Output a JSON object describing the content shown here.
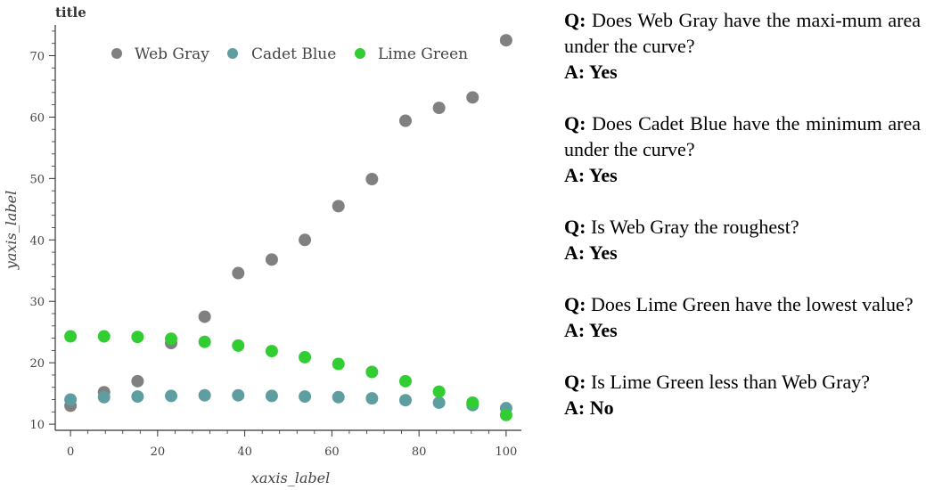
{
  "chart_data": {
    "type": "scatter",
    "title": "title",
    "xlabel": "xaxis_label",
    "ylabel": "yaxis_label",
    "xlim": [
      -3.5,
      103.5
    ],
    "ylim": [
      9,
      75
    ],
    "xticks": [
      0,
      20,
      40,
      60,
      80,
      100
    ],
    "yticks": [
      10,
      20,
      30,
      40,
      50,
      60,
      70
    ],
    "legend": "top-right",
    "grid": false,
    "x": [
      0,
      7.7,
      15.4,
      23.1,
      30.8,
      38.5,
      46.2,
      53.8,
      61.5,
      69.2,
      76.9,
      84.6,
      92.3,
      100
    ],
    "series": [
      {
        "name": "Web Gray",
        "color": "#808080",
        "values": [
          13.0,
          15.2,
          17.0,
          23.2,
          27.5,
          34.6,
          36.8,
          40.0,
          45.5,
          49.9,
          59.4,
          61.5,
          63.2,
          72.5
        ]
      },
      {
        "name": "Cadet Blue",
        "color": "#5f9ea0",
        "values": [
          14.0,
          14.4,
          14.5,
          14.6,
          14.7,
          14.7,
          14.6,
          14.5,
          14.4,
          14.2,
          13.9,
          13.5,
          13.1,
          12.6
        ]
      },
      {
        "name": "Lime Green",
        "color": "#32cd32",
        "values": [
          24.3,
          24.3,
          24.2,
          23.9,
          23.4,
          22.8,
          21.9,
          20.9,
          19.8,
          18.5,
          17.0,
          15.3,
          13.5,
          11.5
        ]
      }
    ]
  },
  "qa": [
    {
      "q_label": "Q:",
      "question": "Does Web Gray have the maxi-mum area under the curve?",
      "a_label": "A:",
      "answer": "Yes"
    },
    {
      "q_label": "Q:",
      "question": "Does Cadet Blue have the minimum area under the curve?",
      "a_label": "A:",
      "answer": "Yes"
    },
    {
      "q_label": "Q:",
      "question": "Is Web Gray the roughest?",
      "a_label": "A:",
      "answer": "Yes"
    },
    {
      "q_label": "Q:",
      "question": "Does Lime Green have the lowest value?",
      "a_label": "A:",
      "answer": "Yes"
    },
    {
      "q_label": "Q:",
      "question": "Is Lime Green less than Web Gray?",
      "a_label": "A:",
      "answer": "No"
    }
  ]
}
